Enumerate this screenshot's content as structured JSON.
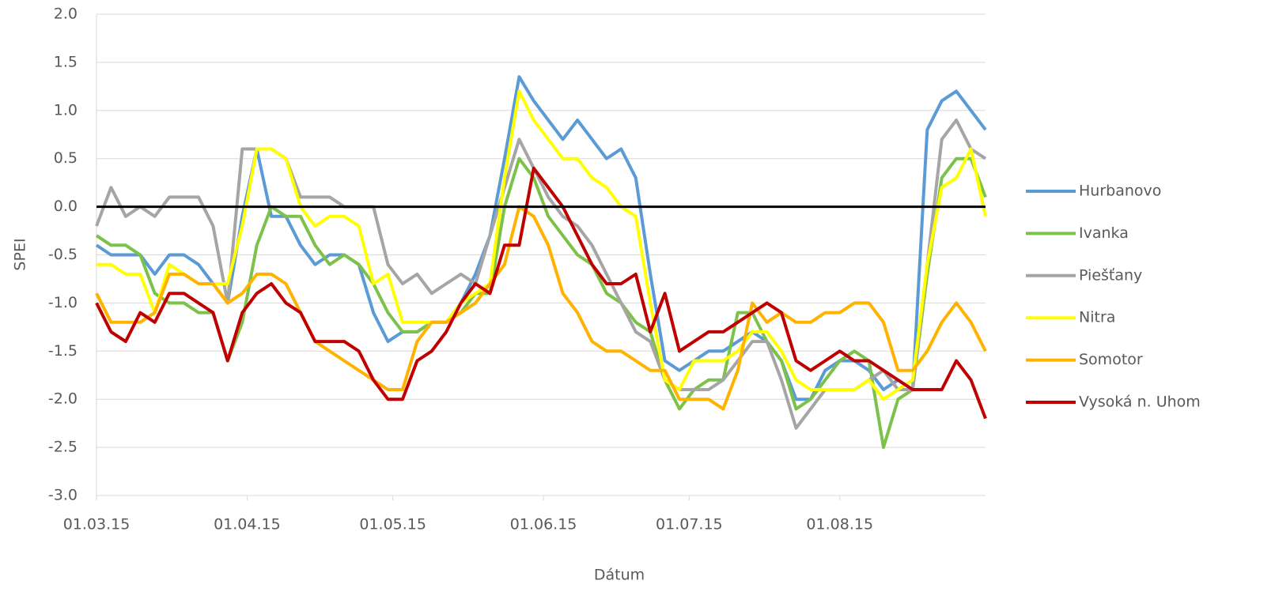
{
  "chart_data": {
    "type": "line",
    "xlabel": "Dátum",
    "ylabel": "SPEI",
    "x": [
      "01.03.15",
      "04.03.15",
      "07.03.15",
      "10.03.15",
      "13.03.15",
      "16.03.15",
      "19.03.15",
      "22.03.15",
      "25.03.15",
      "28.03.15",
      "31.03.15",
      "03.04.15",
      "06.04.15",
      "09.04.15",
      "12.04.15",
      "15.04.15",
      "18.04.15",
      "21.04.15",
      "24.04.15",
      "27.04.15",
      "30.04.15",
      "03.05.15",
      "06.05.15",
      "09.05.15",
      "12.05.15",
      "15.05.15",
      "18.05.15",
      "21.05.15",
      "24.05.15",
      "27.05.15",
      "30.05.15",
      "02.06.15",
      "05.06.15",
      "08.06.15",
      "11.06.15",
      "14.06.15",
      "17.06.15",
      "20.06.15",
      "23.06.15",
      "26.06.15",
      "29.06.15",
      "02.07.15",
      "05.07.15",
      "08.07.15",
      "11.07.15",
      "14.07.15",
      "17.07.15",
      "20.07.15",
      "23.07.15",
      "26.07.15",
      "29.07.15",
      "01.08.15",
      "04.08.15",
      "07.08.15",
      "10.08.15",
      "13.08.15",
      "16.08.15",
      "19.08.15",
      "22.08.15",
      "25.08.15",
      "28.08.15",
      "31.08.15"
    ],
    "xlim": [
      "01.03.15",
      "31.08.15"
    ],
    "xticks": [
      "01.03.15",
      "01.04.15",
      "01.05.15",
      "01.06.15",
      "01.07.15",
      "01.08.15"
    ],
    "ylim": [
      -3,
      2
    ],
    "yticks": [
      {
        "value": 2,
        "label": "2.0"
      },
      1.5,
      {
        "value": 1,
        "label": "1.0"
      },
      0.5,
      {
        "value": 0,
        "label": "0.0"
      },
      -0.5,
      {
        "value": -1,
        "label": "-1.0"
      },
      -1.5,
      {
        "value": -2,
        "label": "-2.0"
      },
      -2.5,
      {
        "value": -3,
        "label": "-3.0"
      }
    ],
    "grid": true,
    "hline": 0,
    "hline_color": "#000000",
    "legend": "right",
    "series": [
      {
        "name": "Hurbanovo",
        "color": "#5b9bd5",
        "values": [
          -0.4,
          -0.5,
          -0.5,
          -0.5,
          -0.7,
          -0.5,
          -0.5,
          -0.6,
          -0.8,
          -1.0,
          -0.1,
          0.6,
          -0.1,
          -0.1,
          -0.4,
          -0.6,
          -0.5,
          -0.5,
          -0.6,
          -1.1,
          -1.4,
          -1.3,
          -1.3,
          -1.2,
          -1.2,
          -1.0,
          -0.7,
          -0.3,
          0.5,
          1.35,
          1.1,
          0.9,
          0.7,
          0.9,
          0.7,
          0.5,
          0.6,
          0.3,
          -0.7,
          -1.6,
          -1.7,
          -1.6,
          -1.5,
          -1.5,
          -1.4,
          -1.3,
          -1.4,
          -1.6,
          -2.0,
          -2.0,
          -1.7,
          -1.6,
          -1.6,
          -1.7,
          -1.9,
          -1.8,
          -1.9,
          0.8,
          1.1,
          1.2,
          1.0,
          0.8
        ]
      },
      {
        "name": "Ivanka",
        "color": "#7cc24a",
        "values": [
          -0.3,
          -0.4,
          -0.4,
          -0.5,
          -0.9,
          -1.0,
          -1.0,
          -1.1,
          -1.1,
          -1.6,
          -1.2,
          -0.4,
          0.0,
          -0.1,
          -0.1,
          -0.4,
          -0.6,
          -0.5,
          -0.6,
          -0.8,
          -1.1,
          -1.3,
          -1.3,
          -1.2,
          -1.2,
          -1.1,
          -0.9,
          -0.9,
          0.0,
          0.5,
          0.3,
          -0.1,
          -0.3,
          -0.5,
          -0.6,
          -0.9,
          -1.0,
          -1.2,
          -1.3,
          -1.8,
          -2.1,
          -1.9,
          -1.8,
          -1.8,
          -1.1,
          -1.1,
          -1.4,
          -1.6,
          -2.1,
          -2.0,
          -1.8,
          -1.6,
          -1.5,
          -1.6,
          -2.5,
          -2.0,
          -1.9,
          -0.7,
          0.3,
          0.5,
          0.5,
          0.1
        ]
      },
      {
        "name": "Piešťany",
        "color": "#a5a5a5",
        "values": [
          -0.2,
          0.2,
          -0.1,
          0.0,
          -0.1,
          0.1,
          0.1,
          0.1,
          -0.2,
          -1.0,
          0.6,
          0.6,
          0.6,
          0.5,
          0.1,
          0.1,
          0.1,
          0.0,
          0.0,
          0.0,
          -0.6,
          -0.8,
          -0.7,
          -0.9,
          -0.8,
          -0.7,
          -0.8,
          -0.3,
          0.2,
          0.7,
          0.4,
          0.1,
          -0.1,
          -0.2,
          -0.4,
          -0.7,
          -1.0,
          -1.3,
          -1.4,
          -1.8,
          -1.9,
          -1.9,
          -1.9,
          -1.8,
          -1.6,
          -1.4,
          -1.4,
          -1.8,
          -2.3,
          -2.1,
          -1.9,
          -1.9,
          -1.9,
          -1.8,
          -1.7,
          -1.9,
          -1.9,
          -0.6,
          0.7,
          0.9,
          0.6,
          0.5
        ]
      },
      {
        "name": "Nitra",
        "color": "#ffff00",
        "values": [
          -0.6,
          -0.6,
          -0.7,
          -0.7,
          -1.1,
          -0.6,
          -0.7,
          -0.8,
          -0.8,
          -0.8,
          -0.2,
          0.6,
          0.6,
          0.5,
          0.0,
          -0.2,
          -0.1,
          -0.1,
          -0.2,
          -0.8,
          -0.7,
          -1.2,
          -1.2,
          -1.2,
          -1.2,
          -1.0,
          -0.9,
          -0.8,
          0.3,
          1.2,
          0.9,
          0.7,
          0.5,
          0.5,
          0.3,
          0.2,
          0.0,
          -0.1,
          -1.0,
          -1.8,
          -1.9,
          -1.6,
          -1.6,
          -1.6,
          -1.5,
          -1.3,
          -1.3,
          -1.5,
          -1.8,
          -1.9,
          -1.9,
          -1.9,
          -1.9,
          -1.8,
          -2.0,
          -1.9,
          -1.8,
          -0.6,
          0.2,
          0.3,
          0.6,
          -0.1
        ]
      },
      {
        "name": "Somotor",
        "color": "#ffb300",
        "values": [
          -0.9,
          -1.2,
          -1.2,
          -1.2,
          -1.1,
          -0.7,
          -0.7,
          -0.8,
          -0.8,
          -1.0,
          -0.9,
          -0.7,
          -0.7,
          -0.8,
          -1.1,
          -1.4,
          -1.5,
          -1.6,
          -1.7,
          -1.8,
          -1.9,
          -1.9,
          -1.4,
          -1.2,
          -1.2,
          -1.1,
          -1.0,
          -0.8,
          -0.6,
          0.0,
          -0.1,
          -0.4,
          -0.9,
          -1.1,
          -1.4,
          -1.5,
          -1.5,
          -1.6,
          -1.7,
          -1.7,
          -2.0,
          -2.0,
          -2.0,
          -2.1,
          -1.7,
          -1.0,
          -1.2,
          -1.1,
          -1.2,
          -1.2,
          -1.1,
          -1.1,
          -1.0,
          -1.0,
          -1.2,
          -1.7,
          -1.7,
          -1.5,
          -1.2,
          -1.0,
          -1.2,
          -1.5
        ]
      },
      {
        "name": "Vysoká n. Uhom",
        "color": "#c00000",
        "values": [
          -1.0,
          -1.3,
          -1.4,
          -1.1,
          -1.2,
          -0.9,
          -0.9,
          -1.0,
          -1.1,
          -1.6,
          -1.1,
          -0.9,
          -0.8,
          -1.0,
          -1.1,
          -1.4,
          -1.4,
          -1.4,
          -1.5,
          -1.8,
          -2.0,
          -2.0,
          -1.6,
          -1.5,
          -1.3,
          -1.0,
          -0.8,
          -0.9,
          -0.4,
          -0.4,
          0.4,
          0.2,
          0.0,
          -0.3,
          -0.6,
          -0.8,
          -0.8,
          -0.7,
          -1.3,
          -0.9,
          -1.5,
          -1.4,
          -1.3,
          -1.3,
          -1.2,
          -1.1,
          -1.0,
          -1.1,
          -1.6,
          -1.7,
          -1.6,
          -1.5,
          -1.6,
          -1.6,
          -1.7,
          -1.8,
          -1.9,
          -1.9,
          -1.9,
          -1.6,
          -1.8,
          -2.2
        ]
      }
    ]
  }
}
